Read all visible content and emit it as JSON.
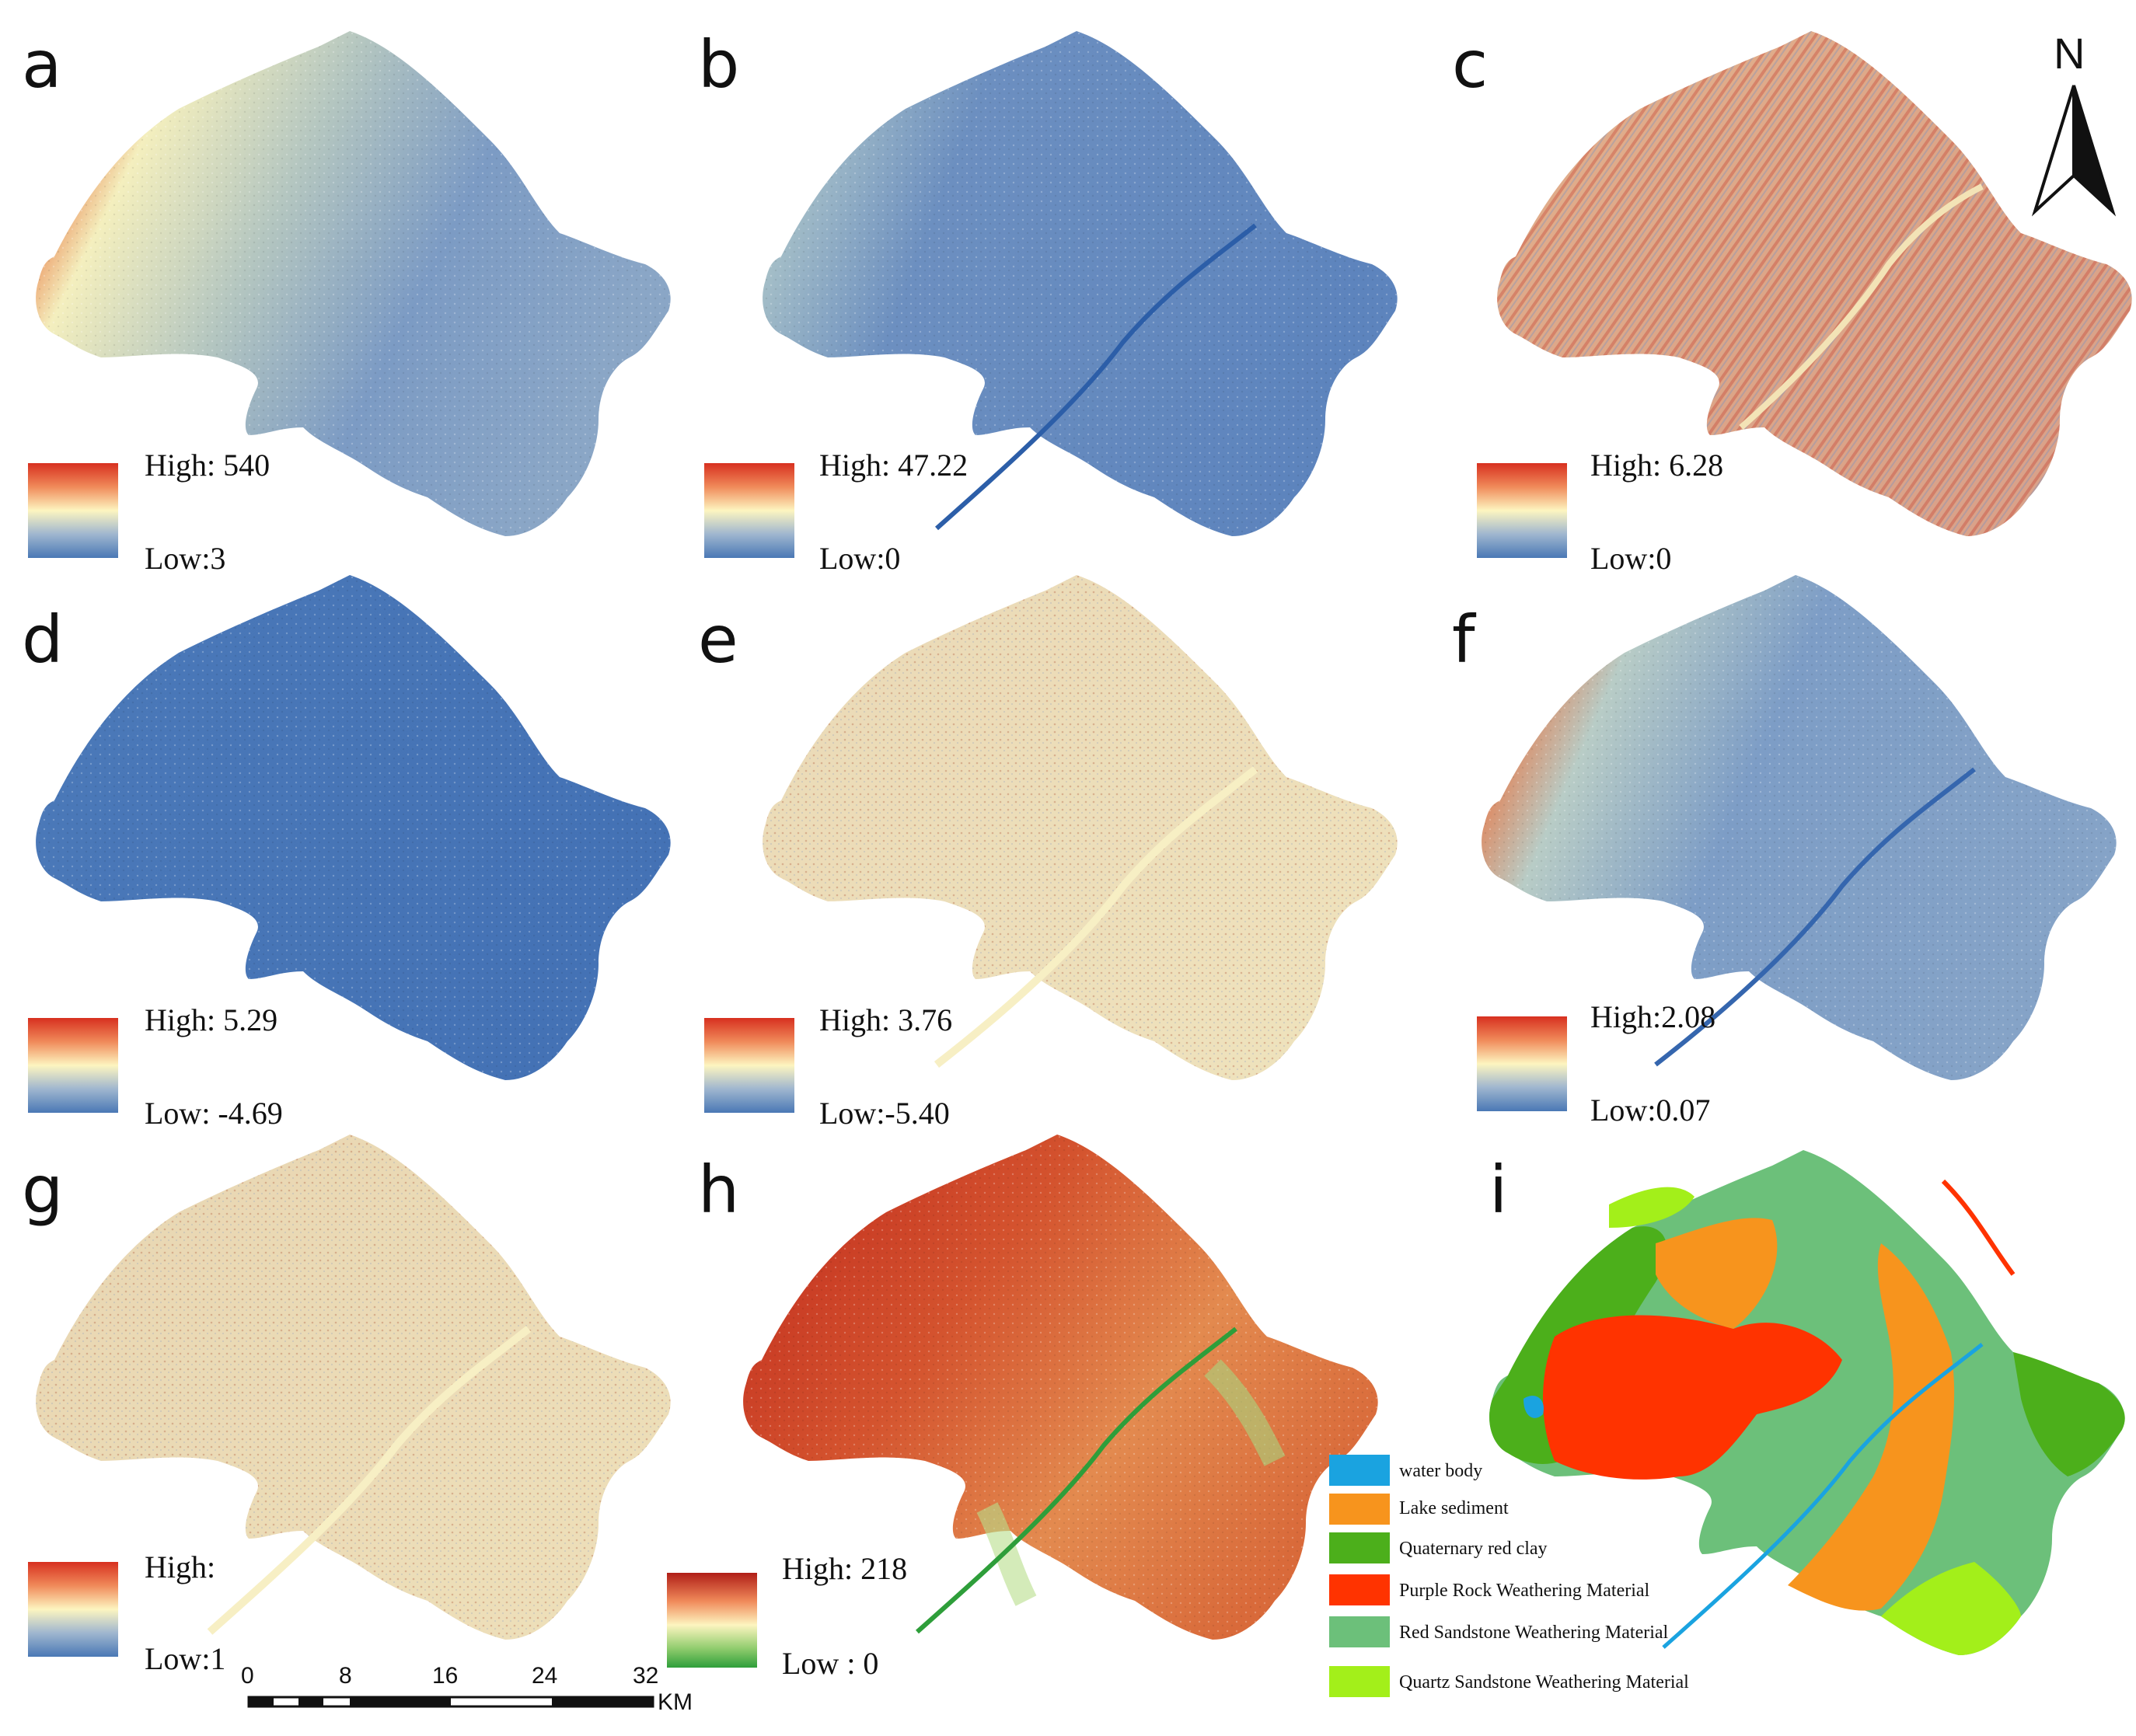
{
  "panels": [
    {
      "letter": "a",
      "legend": {
        "high": "High: 540",
        "low": "Low:3"
      }
    },
    {
      "letter": "b",
      "legend": {
        "high": "High: 47.22",
        "low": "Low:0"
      }
    },
    {
      "letter": "c",
      "legend": {
        "high": "High: 6.28",
        "low": "Low:0"
      }
    },
    {
      "letter": "d",
      "legend": {
        "high": "High: 5.29",
        "low": "Low: -4.69"
      }
    },
    {
      "letter": "e",
      "legend": {
        "high": "High: 3.76",
        "low": "Low:-5.40"
      }
    },
    {
      "letter": "f",
      "legend": {
        "high": "High:2.08",
        "low": "Low:0.07"
      }
    },
    {
      "letter": "g",
      "legend": {
        "high": "High:",
        "low": "Low:1"
      }
    },
    {
      "letter": "h",
      "legend": {
        "high": "High: 218",
        "low": "Low : 0"
      }
    },
    {
      "letter": "i"
    }
  ],
  "north_arrow": {
    "label": "N"
  },
  "scale_bar": {
    "ticks": [
      "0",
      "8",
      "16",
      "24",
      "32"
    ],
    "unit": "KM"
  },
  "soil_legend": [
    {
      "label": "water body",
      "color": "#1aa3e0"
    },
    {
      "label": "Lake sediment",
      "color": "#f7941d"
    },
    {
      "label": "Quaternary red clay",
      "color": "#4caf1b"
    },
    {
      "label": "Purple Rock Weathering Material",
      "color": "#ff3300"
    },
    {
      "label": "Red Sandstone Weathering Material",
      "color": "#6cc07a"
    },
    {
      "label": "Quartz Sandstone Weathering Material",
      "color": "#a3ef1a"
    }
  ],
  "colors": {
    "ramp_high": "#d7301f",
    "ramp_mid": "#fdf5c0",
    "ramp_low": "#4a78b5",
    "ndvi_high": "#c0281c",
    "ndvi_low": "#2e9e3a"
  }
}
